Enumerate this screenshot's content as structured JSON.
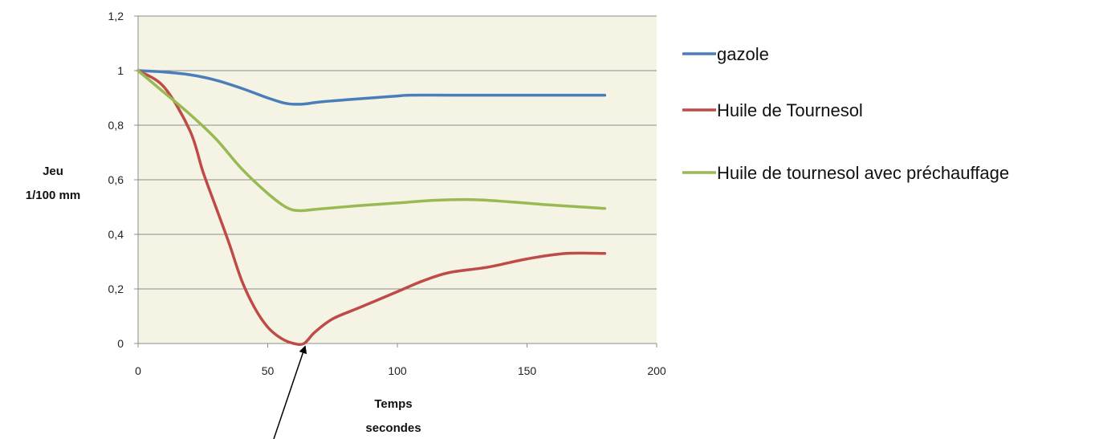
{
  "chart_data": {
    "type": "line",
    "title": "",
    "xlabel": [
      "Temps",
      "secondes"
    ],
    "ylabel": [
      "Jeu",
      "1/100 mm"
    ],
    "xlim": [
      0,
      200
    ],
    "ylim": [
      0,
      1.2
    ],
    "x_ticks": [
      0,
      50,
      100,
      150,
      200
    ],
    "y_ticks": [
      0,
      0.2,
      0.4,
      0.6,
      0.8,
      1,
      1.2
    ],
    "x_tick_labels": [
      "0",
      "50",
      "100",
      "150",
      "200"
    ],
    "y_tick_labels": [
      "0",
      "0,2",
      "0,4",
      "0,6",
      "0,8",
      "1",
      "1,2"
    ],
    "grid": "horizontal",
    "legend_position": "right",
    "background_color": "#f5f3e3",
    "series": [
      {
        "name": "gazole",
        "color": "#4a7ebb",
        "points": [
          [
            0,
            1.0
          ],
          [
            10,
            0.995
          ],
          [
            20,
            0.985
          ],
          [
            30,
            0.965
          ],
          [
            40,
            0.935
          ],
          [
            50,
            0.9
          ],
          [
            57,
            0.88
          ],
          [
            63,
            0.877
          ],
          [
            70,
            0.885
          ],
          [
            80,
            0.893
          ],
          [
            90,
            0.9
          ],
          [
            100,
            0.907
          ],
          [
            105,
            0.91
          ],
          [
            120,
            0.91
          ],
          [
            140,
            0.91
          ],
          [
            160,
            0.91
          ],
          [
            180,
            0.91
          ]
        ]
      },
      {
        "name": "Huile de Tournesol",
        "color": "#be4b48",
        "points": [
          [
            0,
            1.0
          ],
          [
            10,
            0.94
          ],
          [
            20,
            0.78
          ],
          [
            25,
            0.63
          ],
          [
            30,
            0.5
          ],
          [
            35,
            0.37
          ],
          [
            40,
            0.23
          ],
          [
            45,
            0.13
          ],
          [
            50,
            0.06
          ],
          [
            55,
            0.02
          ],
          [
            60,
            0.0
          ],
          [
            64,
            0.0
          ],
          [
            68,
            0.04
          ],
          [
            75,
            0.09
          ],
          [
            85,
            0.13
          ],
          [
            100,
            0.19
          ],
          [
            110,
            0.23
          ],
          [
            120,
            0.26
          ],
          [
            135,
            0.28
          ],
          [
            150,
            0.31
          ],
          [
            165,
            0.33
          ],
          [
            180,
            0.33
          ]
        ]
      },
      {
        "name": "Huile de tournesol avec préchauffage",
        "color": "#98b954",
        "points": [
          [
            0,
            1.0
          ],
          [
            10,
            0.92
          ],
          [
            20,
            0.84
          ],
          [
            30,
            0.75
          ],
          [
            40,
            0.64
          ],
          [
            50,
            0.55
          ],
          [
            57,
            0.5
          ],
          [
            62,
            0.487
          ],
          [
            70,
            0.493
          ],
          [
            85,
            0.505
          ],
          [
            100,
            0.515
          ],
          [
            115,
            0.525
          ],
          [
            130,
            0.527
          ],
          [
            145,
            0.518
          ],
          [
            160,
            0.507
          ],
          [
            180,
            0.495
          ]
        ]
      }
    ],
    "annotation": {
      "type": "arrow",
      "points_to": [
        62,
        0.0
      ]
    }
  }
}
